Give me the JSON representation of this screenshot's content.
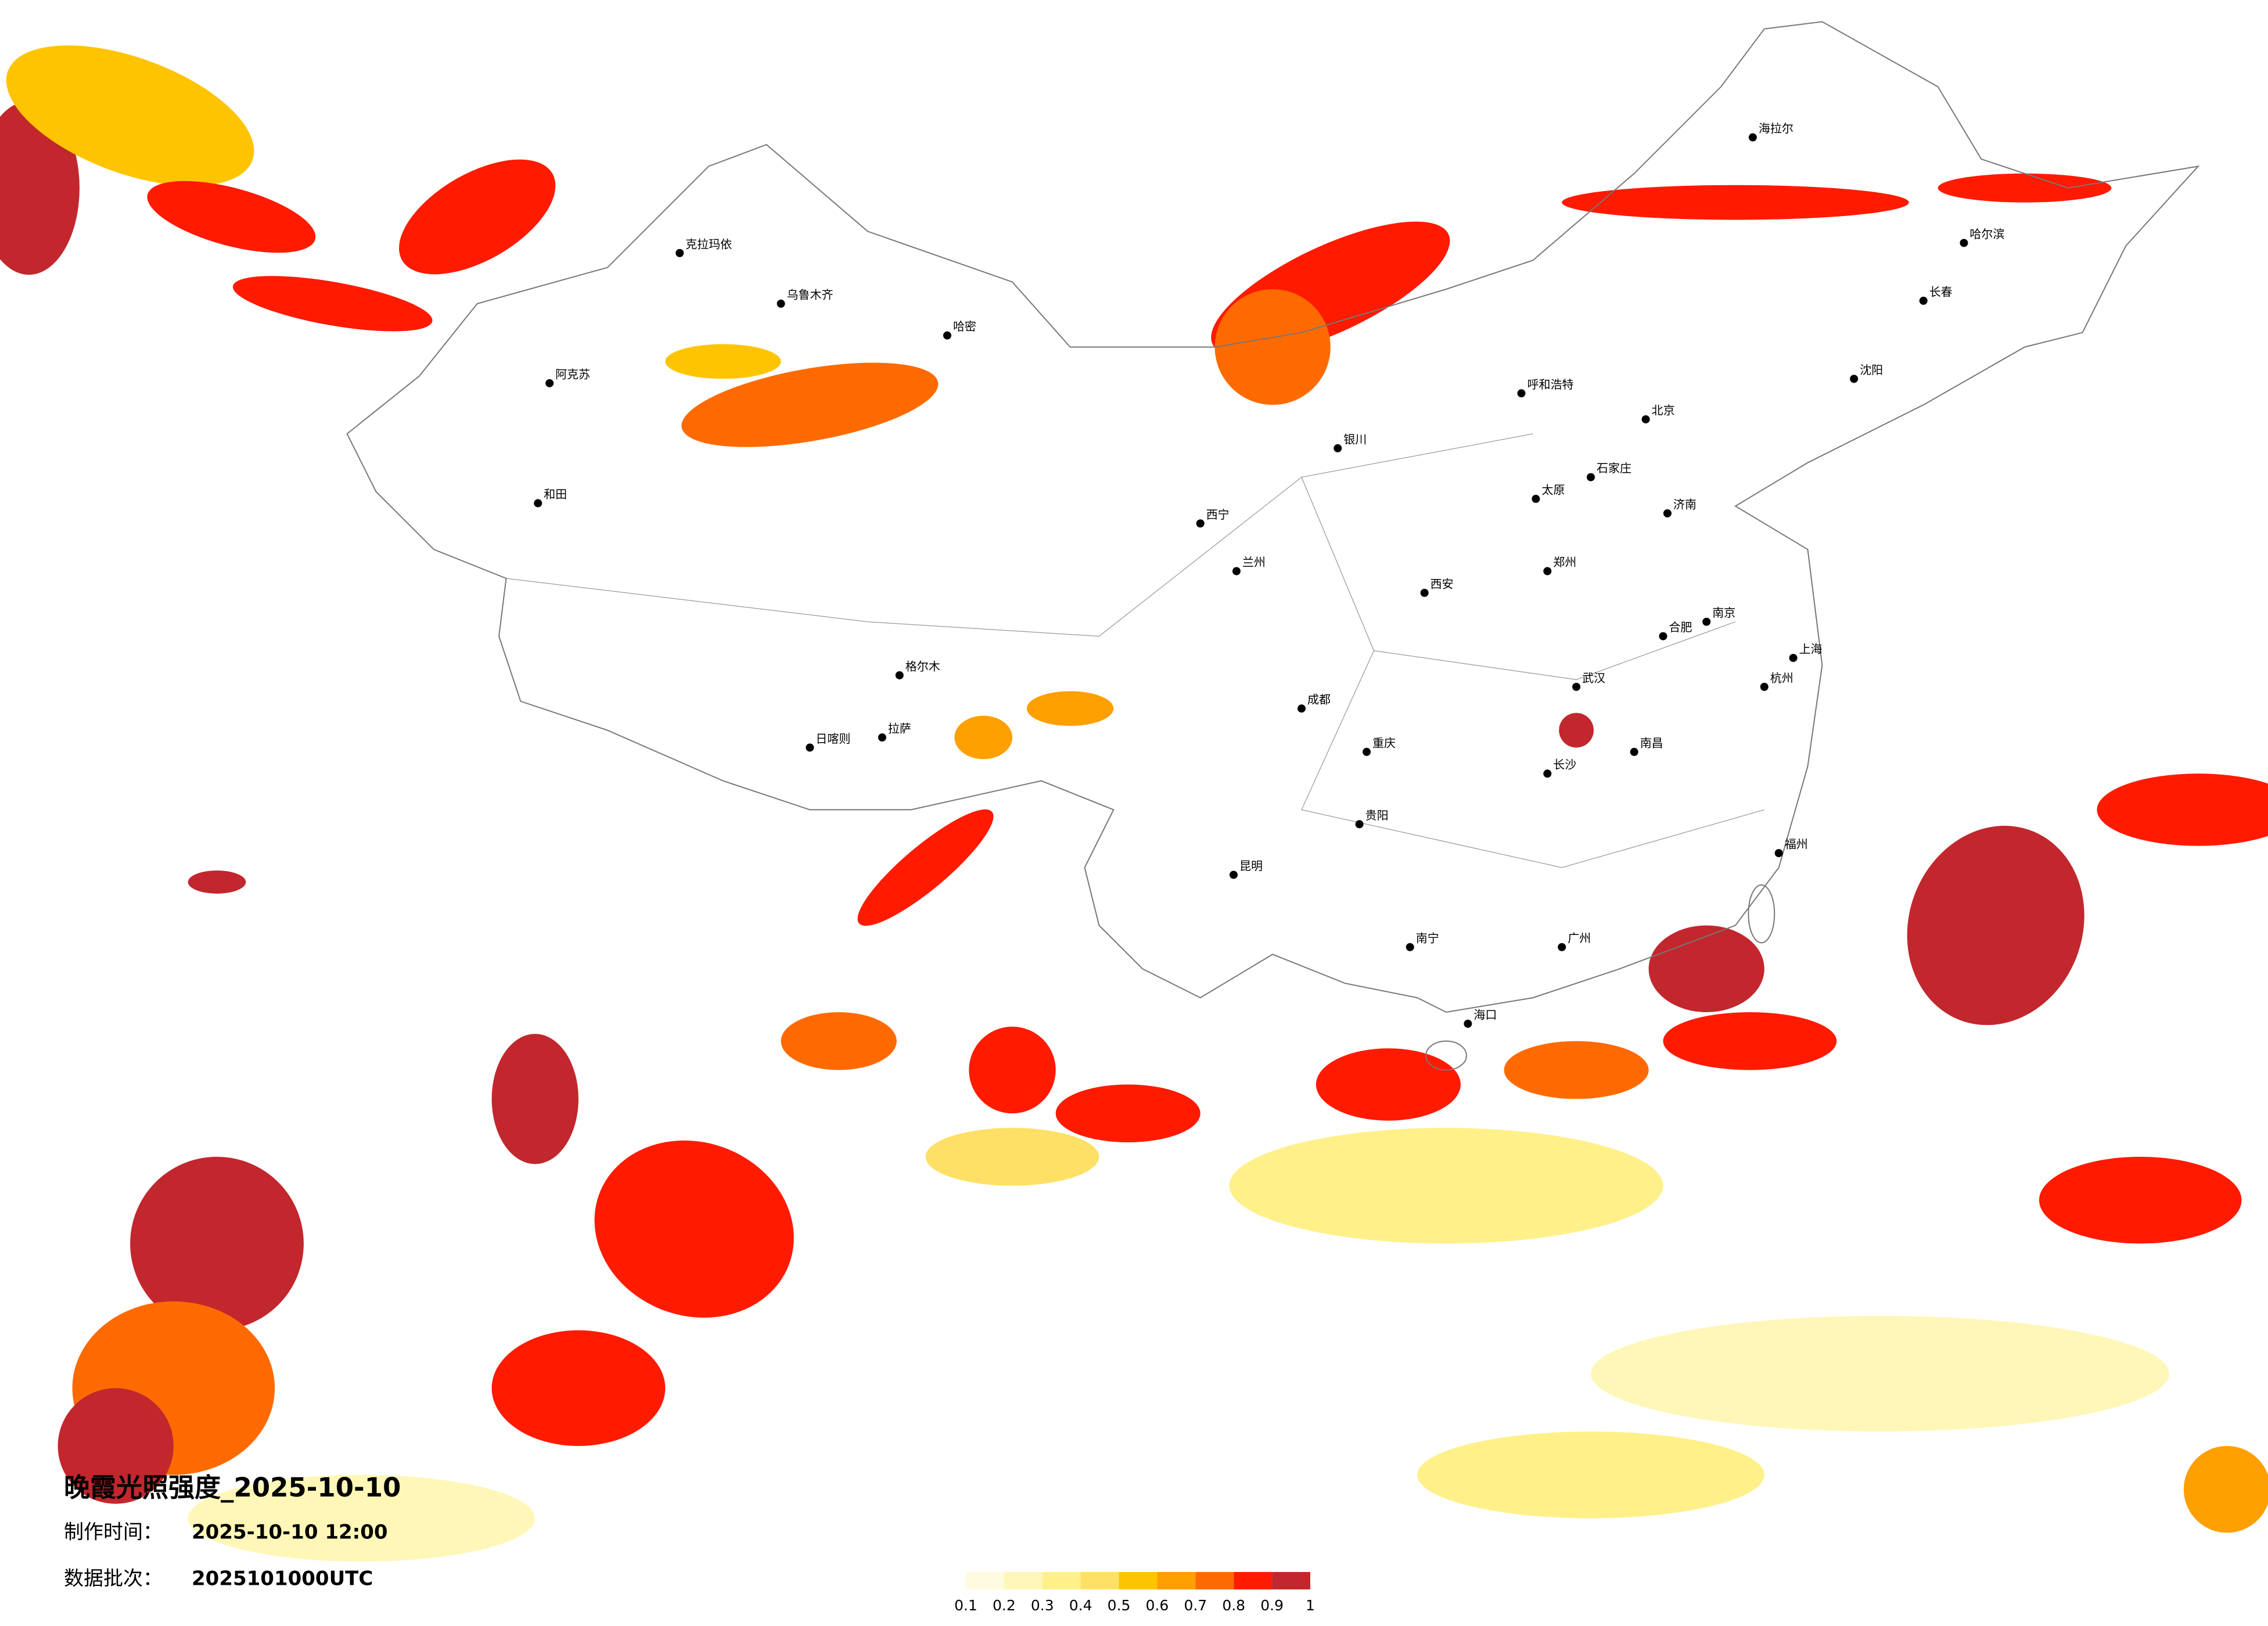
{
  "header": {
    "title": "晚霞光照强度_2025-10-10",
    "made_label": "制作时间：",
    "made": "2025-10-10 12:00",
    "batch_label": "数据批次：",
    "batch": "2025101000UTC"
  },
  "legend": {
    "ticks": [
      0.1,
      0.2,
      0.3,
      0.4,
      0.5,
      0.6,
      0.7,
      0.8,
      0.9,
      1
    ],
    "colors": [
      "#fffbe0",
      "#fff7b8",
      "#fff08a",
      "#ffe066",
      "#ffc400",
      "#ff9f00",
      "#ff6a00",
      "#ff1a00",
      "#c1272d"
    ]
  },
  "cities": [
    "克拉玛依",
    "乌鲁木齐",
    "阿克苏",
    "和田",
    "哈密",
    "格尔木",
    "拉萨",
    "日喀则",
    "西宁",
    "兰州",
    "海拉尔",
    "哈尔滨",
    "长春",
    "沈阳",
    "呼和浩特",
    "北京",
    "石家庄",
    "太原",
    "济南",
    "郑州",
    "西安",
    "成都",
    "重庆",
    "武汉",
    "长沙",
    "南昌",
    "合肥",
    "南京",
    "上海",
    "杭州",
    "福州",
    "广州",
    "南宁",
    "昆明",
    "贵阳",
    "海口",
    "银川"
  ]
}
